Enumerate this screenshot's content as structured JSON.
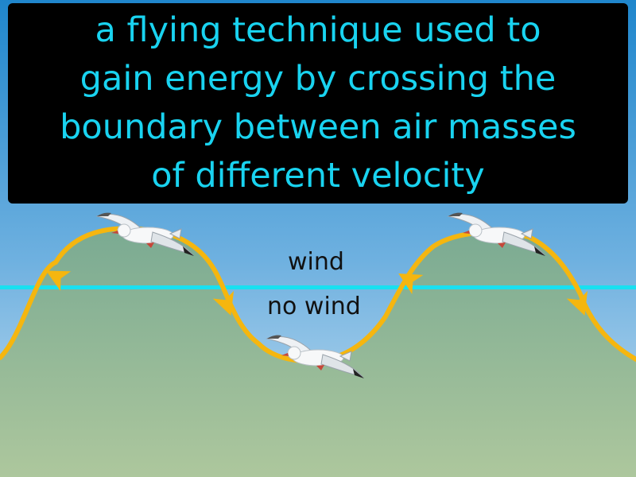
{
  "definition": {
    "line1": "a flying technique used to",
    "line2": "gain energy by crossing the",
    "line3": "boundary between air masses",
    "line4": "of different velocity"
  },
  "labels": {
    "wind": "wind",
    "no_wind": "no wind"
  },
  "colors": {
    "caption_background": "#000000",
    "caption_text": "#19d3f0",
    "sky_top": "#1f86cc",
    "sky_bottom": "#bcd9ee",
    "boundary_line": "#19e0f0",
    "path": "#f5b60f",
    "ground_top": "#7fae94",
    "ground_bottom": "#aac59c"
  },
  "icons": [
    "seagull-icon",
    "arrow-head-icon"
  ]
}
